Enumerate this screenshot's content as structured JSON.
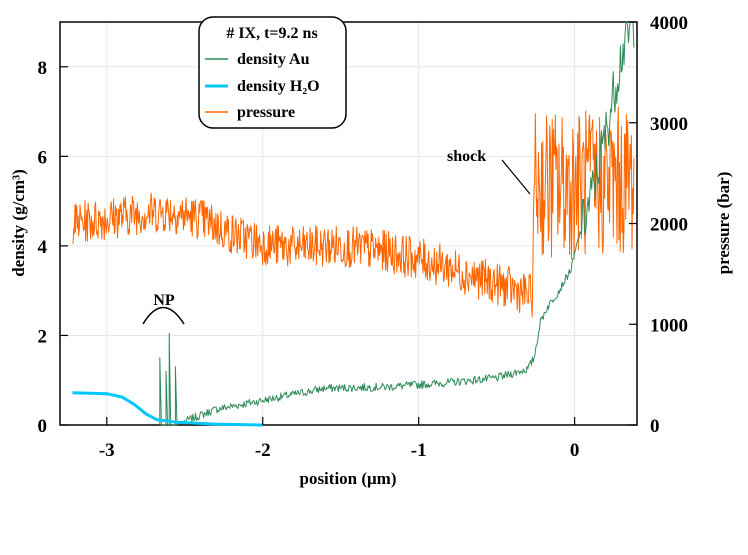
{
  "chart_data": {
    "type": "line",
    "title": "# IX, t=9.2 ns",
    "xlabel": "position (μm)",
    "ylabel_left": "density (g/cm³)",
    "ylabel_right": "pressure (bar)",
    "xlim": [
      -3.3,
      0.4
    ],
    "ylim_left": [
      0,
      9
    ],
    "ylim_right": [
      0,
      4000
    ],
    "xticks": [
      "-3",
      "-2",
      "-1",
      "0"
    ],
    "yticks_left": [
      "0",
      "2",
      "4",
      "6",
      "8"
    ],
    "yticks_right": [
      "0",
      "1000",
      "2000",
      "3000",
      "4000"
    ],
    "grid": true,
    "legend_position": "top-center",
    "series": [
      {
        "name": "density Au",
        "axis": "left",
        "color": "#2e8b57",
        "points": [
          [
            -2.66,
            0
          ],
          [
            -2.66,
            1.5
          ],
          [
            -2.65,
            0
          ],
          [
            -2.62,
            0
          ],
          [
            -2.62,
            1.2
          ],
          [
            -2.61,
            0
          ],
          [
            -2.6,
            0
          ],
          [
            -2.6,
            2.05
          ],
          [
            -2.59,
            0
          ],
          [
            -2.56,
            0
          ],
          [
            -2.56,
            1.3
          ],
          [
            -2.55,
            0
          ],
          [
            -2.5,
            0.08
          ],
          [
            -2.3,
            0.35
          ],
          [
            -2.0,
            0.55
          ],
          [
            -1.6,
            0.82
          ],
          [
            -1.2,
            0.85
          ],
          [
            -0.8,
            0.95
          ],
          [
            -0.5,
            1.05
          ],
          [
            -0.3,
            1.25
          ],
          [
            -0.26,
            1.5
          ],
          [
            -0.22,
            2.3
          ],
          [
            -0.18,
            2.6
          ],
          [
            -0.1,
            3.0
          ],
          [
            -0.02,
            3.5
          ],
          [
            0.02,
            4.1
          ],
          [
            0.1,
            5.0
          ],
          [
            0.2,
            6.5
          ],
          [
            0.3,
            8.3
          ],
          [
            0.38,
            9.0
          ]
        ]
      },
      {
        "name": "density H₂O",
        "axis": "left",
        "color": "#00c8ff",
        "points": [
          [
            -3.22,
            0.72
          ],
          [
            -3.0,
            0.7
          ],
          [
            -2.9,
            0.62
          ],
          [
            -2.82,
            0.45
          ],
          [
            -2.75,
            0.25
          ],
          [
            -2.68,
            0.12
          ],
          [
            -2.55,
            0.06
          ],
          [
            -2.3,
            0.02
          ],
          [
            -2.0,
            0.0
          ]
        ]
      },
      {
        "name": "pressure",
        "axis": "right",
        "color": "#ff6600",
        "points": [
          [
            -3.22,
            2000
          ],
          [
            -3.0,
            2050
          ],
          [
            -2.8,
            2100
          ],
          [
            -2.6,
            2120
          ],
          [
            -2.4,
            2050
          ],
          [
            -2.2,
            1900
          ],
          [
            -2.0,
            1800
          ],
          [
            -1.8,
            1760
          ],
          [
            -1.5,
            1780
          ],
          [
            -1.2,
            1720
          ],
          [
            -1.0,
            1650
          ],
          [
            -0.8,
            1560
          ],
          [
            -0.6,
            1450
          ],
          [
            -0.4,
            1350
          ],
          [
            -0.27,
            1280
          ],
          [
            -0.26,
            2400
          ],
          [
            -0.1,
            2380
          ],
          [
            0.1,
            2400
          ],
          [
            0.3,
            2420
          ],
          [
            0.38,
            2450
          ]
        ]
      }
    ],
    "annotations": [
      "NP",
      "shock"
    ]
  }
}
